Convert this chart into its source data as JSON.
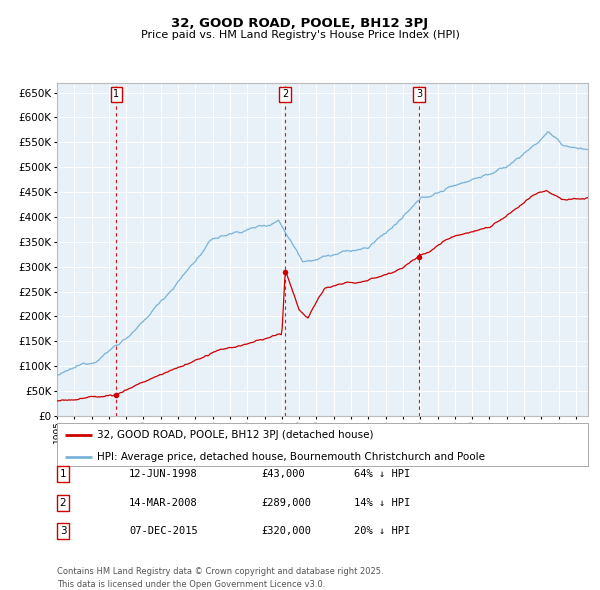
{
  "title": "32, GOOD ROAD, POOLE, BH12 3PJ",
  "subtitle": "Price paid vs. HM Land Registry's House Price Index (HPI)",
  "legend_line1": "32, GOOD ROAD, POOLE, BH12 3PJ (detached house)",
  "legend_line2": "HPI: Average price, detached house, Bournemouth Christchurch and Poole",
  "footer": "Contains HM Land Registry data © Crown copyright and database right 2025.\nThis data is licensed under the Open Government Licence v3.0.",
  "hpi_color": "#7ab3d8",
  "price_color": "#cc0000",
  "background_color": "#e8f0f8",
  "vline_color": "#cc0000",
  "purchases": [
    {
      "date_num": 1998.44,
      "price": 43000,
      "label": "1",
      "date_str": "12-JUN-1998",
      "price_str": "£43,000",
      "pct": "64% ↓ HPI"
    },
    {
      "date_num": 2008.2,
      "price": 289000,
      "label": "2",
      "date_str": "14-MAR-2008",
      "price_str": "£289,000",
      "pct": "14% ↓ HPI"
    },
    {
      "date_num": 2015.93,
      "price": 320000,
      "label": "3",
      "date_str": "07-DEC-2015",
      "price_str": "£320,000",
      "pct": "20% ↓ HPI"
    }
  ],
  "ylim": [
    0,
    670000
  ],
  "xlim_start": 1995.0,
  "xlim_end": 2025.7,
  "yticks": [
    0,
    50000,
    100000,
    150000,
    200000,
    250000,
    300000,
    350000,
    400000,
    450000,
    500000,
    550000,
    600000,
    650000
  ]
}
